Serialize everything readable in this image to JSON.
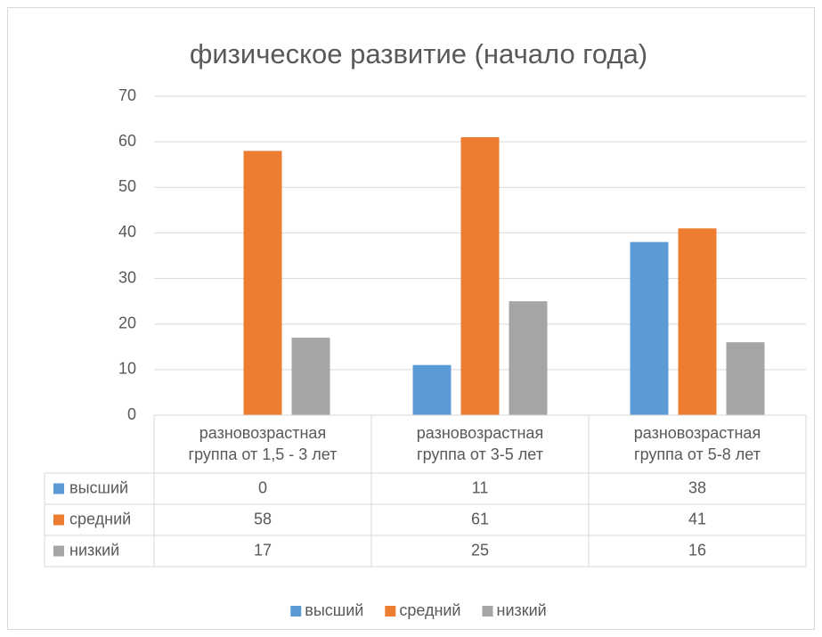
{
  "chart_data": {
    "type": "bar",
    "title": "физическое развитие (начало года)",
    "categories": [
      "разновозрастная группа от 1,5 - 3 лет",
      "разновозрастная группа от 3-5 лет",
      "разновозрастная группа от 5-8 лет"
    ],
    "series": [
      {
        "name": "высший",
        "color": "#5b9bd5",
        "values": [
          0,
          11,
          38
        ]
      },
      {
        "name": "средний",
        "color": "#ed7d31",
        "values": [
          58,
          61,
          41
        ]
      },
      {
        "name": "низкий",
        "color": "#a5a5a5",
        "values": [
          17,
          25,
          16
        ]
      }
    ],
    "ylim": [
      0,
      70
    ],
    "yticks": [
      0,
      10,
      20,
      30,
      40,
      50,
      60,
      70
    ],
    "grid": true,
    "legend": "bottom",
    "data_table": true
  }
}
